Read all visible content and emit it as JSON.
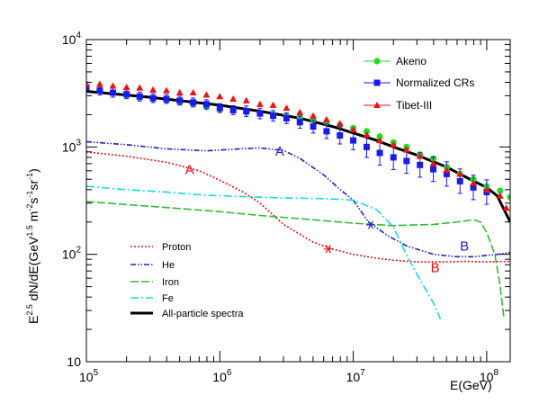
{
  "chart_data": {
    "type": "scatter",
    "title": "",
    "xlabel": "E(GeV)",
    "ylabel_parts": {
      "prefix_base": "E",
      "prefix_exp": "2.5",
      "mid": " dN/dE(GeV",
      "mid_exp": "1.5",
      "m": " m",
      "m_exp": "-2",
      "s": "s",
      "s_exp": "-1",
      "sr": "sr",
      "sr_exp": "-1",
      "close": ")"
    },
    "xscale": "log",
    "yscale": "log",
    "xlim": [
      100000.0,
      150000000.0
    ],
    "ylim": [
      10,
      10000.0
    ],
    "x_ticks": [
      {
        "value": 100000.0,
        "base": "10",
        "exp": "5"
      },
      {
        "value": 1000000.0,
        "base": "10",
        "exp": "6"
      },
      {
        "value": 10000000.0,
        "base": "10",
        "exp": "7"
      },
      {
        "value": 100000000.0,
        "base": "10",
        "exp": "8"
      }
    ],
    "y_ticks": [
      {
        "value": 10,
        "base": "10",
        "exp": ""
      },
      {
        "value": 100,
        "base": "10",
        "exp": "2"
      },
      {
        "value": 1000,
        "base": "10",
        "exp": "3"
      },
      {
        "value": 10000,
        "base": "10",
        "exp": "4"
      }
    ],
    "grid": false,
    "legend_placement": "top-right",
    "series": [
      {
        "name": "Akeno",
        "kind": "markers",
        "marker": "circle",
        "color": "#22dd22",
        "points": [
          [
            126000.0,
            3400
          ],
          [
            158000.0,
            3200
          ],
          [
            200000.0,
            3000
          ],
          [
            251000.0,
            2900
          ],
          [
            316000.0,
            2800
          ],
          [
            398000.0,
            2700
          ],
          [
            501000.0,
            2600
          ],
          [
            631000.0,
            2500
          ],
          [
            794000.0,
            2350
          ],
          [
            1000000.0,
            2250
          ],
          [
            1260000.0,
            2200
          ],
          [
            1580000.0,
            2100
          ],
          [
            2000000.0,
            2050
          ],
          [
            2510000.0,
            2000
          ],
          [
            3160000.0,
            1950
          ],
          [
            3980000.0,
            1900
          ],
          [
            5010000.0,
            1800
          ],
          [
            6310000.0,
            1700
          ],
          [
            7940000.0,
            1600
          ],
          [
            10000000.0,
            1500
          ],
          [
            12600000.0,
            1400
          ],
          [
            15800000.0,
            1250
          ],
          [
            20000000.0,
            1100
          ],
          [
            25100000.0,
            1000
          ],
          [
            31600000.0,
            850
          ],
          [
            39800000.0,
            780
          ],
          [
            50100000.0,
            650
          ],
          [
            63100000.0,
            560
          ],
          [
            79400000.0,
            500
          ],
          [
            100000000.0,
            430
          ],
          [
            126000000.0,
            390
          ],
          [
            150000000.0,
            340
          ]
        ]
      },
      {
        "name": "Normalized CRs",
        "kind": "markers",
        "marker": "square",
        "color": "#1a1aee",
        "points": [
          [
            100000.0,
            3600,
            0.12
          ],
          [
            126000.0,
            3350,
            0.1
          ],
          [
            158000.0,
            3200,
            0.1
          ],
          [
            200000.0,
            3100,
            0.1
          ],
          [
            251000.0,
            2950,
            0.1
          ],
          [
            316000.0,
            2850,
            0.1
          ],
          [
            398000.0,
            2800,
            0.1
          ],
          [
            501000.0,
            2700,
            0.1
          ],
          [
            631000.0,
            2600,
            0.1
          ],
          [
            794000.0,
            2500,
            0.1
          ],
          [
            1000000.0,
            2300,
            0.1
          ],
          [
            1260000.0,
            2200,
            0.1
          ],
          [
            1580000.0,
            2150,
            0.12
          ],
          [
            2000000.0,
            2050,
            0.12
          ],
          [
            2510000.0,
            1950,
            0.12
          ],
          [
            3160000.0,
            1850,
            0.12
          ],
          [
            3980000.0,
            1700,
            0.14
          ],
          [
            5010000.0,
            1550,
            0.15
          ],
          [
            6310000.0,
            1400,
            0.17
          ],
          [
            7940000.0,
            1280,
            0.2
          ],
          [
            10000000.0,
            1150,
            0.22
          ],
          [
            12600000.0,
            1000,
            0.25
          ],
          [
            15800000.0,
            880,
            0.3
          ],
          [
            20000000.0,
            800,
            0.3
          ],
          [
            25100000.0,
            740,
            0.3
          ],
          [
            31600000.0,
            680,
            0.3
          ],
          [
            39800000.0,
            620,
            0.3
          ],
          [
            50100000.0,
            560,
            0.3
          ],
          [
            63100000.0,
            480,
            0.3
          ],
          [
            79400000.0,
            420,
            0.3
          ],
          [
            100000000.0,
            380,
            0.3
          ]
        ]
      },
      {
        "name": "Tibet-III",
        "kind": "markers",
        "marker": "triangle",
        "color": "#ee1111",
        "points": [
          [
            100000.0,
            3800
          ],
          [
            126000.0,
            3850
          ],
          [
            158000.0,
            3700
          ],
          [
            200000.0,
            3600
          ],
          [
            251000.0,
            3550
          ],
          [
            316000.0,
            3400
          ],
          [
            398000.0,
            3350
          ],
          [
            501000.0,
            3200
          ],
          [
            631000.0,
            3200
          ],
          [
            794000.0,
            3050
          ],
          [
            1000000.0,
            2950
          ],
          [
            1260000.0,
            2800
          ],
          [
            1580000.0,
            2700
          ],
          [
            2000000.0,
            2500
          ],
          [
            2510000.0,
            2450
          ],
          [
            3160000.0,
            2300
          ],
          [
            3980000.0,
            2100
          ],
          [
            5010000.0,
            1950
          ],
          [
            6310000.0,
            1800
          ],
          [
            7940000.0,
            1650
          ],
          [
            10000000.0,
            1450
          ],
          [
            12600000.0,
            1300
          ],
          [
            15800000.0,
            1150
          ],
          [
            20000000.0,
            1050
          ],
          [
            25100000.0,
            940
          ],
          [
            31600000.0,
            820
          ],
          [
            39800000.0,
            700
          ],
          [
            50100000.0,
            610
          ],
          [
            63100000.0,
            560
          ],
          [
            79400000.0,
            460
          ],
          [
            100000000.0,
            400
          ],
          [
            126000000.0,
            350
          ],
          [
            140000000.0,
            270
          ]
        ]
      },
      {
        "name": "All-particle spectra",
        "kind": "line",
        "style": "solid",
        "color": "#000000",
        "points": [
          [
            100000.0,
            3300
          ],
          [
            300000.0,
            2900
          ],
          [
            1000000.0,
            2450
          ],
          [
            2000000.0,
            2150
          ],
          [
            4000000.0,
            1850
          ],
          [
            7000000.0,
            1550
          ],
          [
            10000000.0,
            1350
          ],
          [
            15000000.0,
            1150
          ],
          [
            20000000.0,
            1000
          ],
          [
            30000000.0,
            840
          ],
          [
            50000000.0,
            650
          ],
          [
            80000000.0,
            480
          ],
          [
            100000000.0,
            420
          ],
          [
            120000000.0,
            350
          ],
          [
            150000000.0,
            200
          ]
        ]
      },
      {
        "name": "Proton",
        "kind": "line",
        "style": "dotted",
        "color": "#dd1111",
        "points": [
          [
            100000.0,
            900
          ],
          [
            200000.0,
            820
          ],
          [
            400000.0,
            720
          ],
          [
            700000.0,
            600
          ],
          [
            1000000.0,
            490
          ],
          [
            1500000.0,
            380
          ],
          [
            2000000.0,
            300
          ],
          [
            3000000.0,
            190
          ],
          [
            5000000.0,
            130
          ],
          [
            7000000.0,
            112
          ],
          [
            10000000.0,
            100
          ],
          [
            15000000.0,
            92
          ],
          [
            20000000.0,
            88
          ],
          [
            30000000.0,
            85
          ],
          [
            50000000.0,
            85
          ],
          [
            70000000.0,
            86
          ],
          [
            100000000.0,
            85
          ],
          [
            150000000.0,
            86
          ]
        ]
      },
      {
        "name": "He",
        "kind": "line",
        "style": "dashdotdot",
        "color": "#2222bb",
        "points": [
          [
            100000.0,
            1120
          ],
          [
            200000.0,
            1050
          ],
          [
            400000.0,
            960
          ],
          [
            800000.0,
            920
          ],
          [
            1200000.0,
            950
          ],
          [
            2000000.0,
            980
          ],
          [
            3000000.0,
            930
          ],
          [
            4000000.0,
            780
          ],
          [
            6000000.0,
            550
          ],
          [
            8000000.0,
            400
          ],
          [
            10000000.0,
            320
          ],
          [
            13000000.0,
            200
          ],
          [
            18000000.0,
            150
          ],
          [
            25000000.0,
            120
          ],
          [
            40000000.0,
            100
          ],
          [
            60000000.0,
            95
          ],
          [
            80000000.0,
            95
          ],
          [
            120000000.0,
            100
          ],
          [
            150000000.0,
            104
          ]
        ]
      },
      {
        "name": "Iron",
        "kind": "line",
        "style": "longdash",
        "color": "#33bb33",
        "points": [
          [
            100000.0,
            310
          ],
          [
            300000.0,
            280
          ],
          [
            1000000.0,
            250
          ],
          [
            2000000.0,
            230
          ],
          [
            5000000.0,
            210
          ],
          [
            10000000.0,
            195
          ],
          [
            20000000.0,
            185
          ],
          [
            40000000.0,
            190
          ],
          [
            60000000.0,
            200
          ],
          [
            80000000.0,
            210
          ],
          [
            90000000.0,
            200
          ],
          [
            100000000.0,
            160
          ],
          [
            115000000.0,
            100
          ],
          [
            125000000.0,
            55
          ],
          [
            135000000.0,
            25
          ]
        ]
      },
      {
        "name": "Fe",
        "kind": "line",
        "style": "dashdot",
        "color": "#11dddd",
        "points": [
          [
            100000.0,
            430
          ],
          [
            200000.0,
            400
          ],
          [
            400000.0,
            380
          ],
          [
            800000.0,
            355
          ],
          [
            1500000.0,
            345
          ],
          [
            3000000.0,
            335
          ],
          [
            6000000.0,
            330
          ],
          [
            10000000.0,
            320
          ],
          [
            15000000.0,
            260
          ],
          [
            20000000.0,
            180
          ],
          [
            25000000.0,
            100
          ],
          [
            30000000.0,
            65
          ],
          [
            40000000.0,
            35
          ],
          [
            45000000.0,
            25
          ]
        ]
      }
    ],
    "annotations": [
      {
        "text": "A",
        "color": "#dd1111",
        "x": 550000.0,
        "y": 560
      },
      {
        "text": "A",
        "color": "#2222bb",
        "x": 2600000.0,
        "y": 830
      },
      {
        "text": "B",
        "color": "#2222bb",
        "x": 63000000.0,
        "y": 108
      },
      {
        "text": "B",
        "color": "#dd1111",
        "x": 38000000.0,
        "y": 68
      }
    ],
    "star_markers": [
      {
        "color": "#dd1111",
        "x": 6500000.0,
        "y": 112
      },
      {
        "color": "#2222bb",
        "x": 13500000.0,
        "y": 188
      }
    ]
  },
  "legend_top": [
    "Akeno",
    "Normalized CRs",
    "Tibet-III"
  ],
  "legend_bottom": [
    "Proton",
    "He",
    "Iron",
    "Fe",
    "All-particle spectra"
  ]
}
